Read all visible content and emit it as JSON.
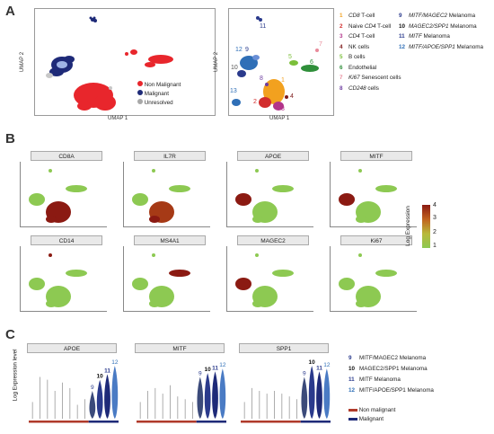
{
  "panels": {
    "a": "A",
    "b": "B",
    "c": "C"
  },
  "panelA": {
    "umap_x": "UMAP 1",
    "umap_y": "UMAP 2",
    "status_legend": [
      {
        "label": "Non Malignant",
        "color": "#e8262c"
      },
      {
        "label": "Malignant",
        "color": "#1e2a78"
      },
      {
        "label": "Unresolved",
        "color": "#a8a8a8"
      }
    ],
    "cluster_labels_on_plot": [
      "1",
      "2",
      "3",
      "4",
      "5",
      "6",
      "7",
      "8",
      "9",
      "10",
      "11",
      "12",
      "13"
    ],
    "cluster_legend_left": [
      {
        "num": "1",
        "pre": "",
        "it": "CD8",
        "post": " T-cell",
        "color": "#f2a11f"
      },
      {
        "num": "2",
        "pre": "Naive ",
        "it": "CD4",
        "post": " T-cell",
        "color": "#d22d2d"
      },
      {
        "num": "3",
        "pre": "",
        "it": "CD4",
        "post": " T-cell",
        "color": "#b2338a"
      },
      {
        "num": "4",
        "pre": "NK cells",
        "it": "",
        "post": "",
        "color": "#7d1a1a"
      },
      {
        "num": "5",
        "pre": "B cells",
        "it": "",
        "post": "",
        "color": "#7bbf3a"
      },
      {
        "num": "6",
        "pre": "Endothelial",
        "it": "",
        "post": "",
        "color": "#2f8f3a"
      },
      {
        "num": "7",
        "pre": "",
        "it": "Ki67",
        "post": " Senescent cells",
        "color": "#e88a9a"
      },
      {
        "num": "8",
        "pre": "",
        "it": "CD248",
        "post": " cells",
        "color": "#6e3fa1"
      }
    ],
    "cluster_legend_right": [
      {
        "num": "9",
        "it": "MITF/MAGEC2",
        "post": " Melanoma",
        "color": "#2a3a8c"
      },
      {
        "num": "10",
        "it": "MAGEC2/SPP1",
        "post": " Melanoma",
        "color": "#111111"
      },
      {
        "num": "11",
        "it": "MITF",
        "post": " Melanoma",
        "color": "#2a3a8c"
      },
      {
        "num": "12",
        "it": "MITF/APOE/SPP1",
        "post": " Melanoma",
        "color": "#2f6fb7"
      }
    ]
  },
  "panelB": {
    "genes_row1": [
      "CD8A",
      "IL7R",
      "APOE",
      "MITF"
    ],
    "genes_row2": [
      "CD14",
      "MS4A1",
      "MAGEC2",
      "Ki67"
    ],
    "colorbar_title": "Log Expression",
    "colorbar_ticks": [
      "4",
      "3",
      "2",
      "1"
    ]
  },
  "panelC": {
    "ylabel": "Log Expression level",
    "group_legend": [
      {
        "label": "Non malignant",
        "color": "#b03a2a"
      },
      {
        "label": "Malignant",
        "color": "#1e2a78"
      }
    ],
    "cluster_legend": [
      {
        "num": "9",
        "text": "MITF/MAGEC2 Melanoma",
        "color": "#2a3a8c"
      },
      {
        "num": "10",
        "text": "MAGEC2/SPP1 Melanoma",
        "color": "#111111"
      },
      {
        "num": "11",
        "text": "MITF Melanoma",
        "color": "#2a3a8c"
      },
      {
        "num": "12",
        "text": "MITF/APOE/SPP1 Melanoma",
        "color": "#2f6fb7"
      }
    ]
  },
  "chart_data": {
    "type": "violin",
    "ylabel": "Log Expression level",
    "series_order": [
      "1",
      "2",
      "3",
      "4",
      "5",
      "6",
      "7",
      "8",
      "9",
      "10",
      "11",
      "12"
    ],
    "panels": [
      {
        "gene": "APOE",
        "heights": [
          0.3,
          0.75,
          0.7,
          0.5,
          0.65,
          0.55,
          0.25,
          0.35,
          0.5,
          0.7,
          0.8,
          0.95
        ],
        "labelled": [
          "9",
          "10",
          "11",
          "12"
        ]
      },
      {
        "gene": "MITF",
        "heights": [
          0.3,
          0.5,
          0.55,
          0.45,
          0.6,
          0.4,
          0.35,
          0.3,
          0.75,
          0.82,
          0.85,
          0.9
        ],
        "labelled": [
          "9",
          "10",
          "11",
          "12"
        ]
      },
      {
        "gene": "SPP1",
        "heights": [
          0.3,
          0.55,
          0.5,
          0.45,
          0.5,
          0.45,
          0.4,
          0.35,
          0.75,
          0.95,
          0.85,
          0.9
        ],
        "labelled": [
          "9",
          "10",
          "11",
          "12"
        ]
      }
    ]
  }
}
